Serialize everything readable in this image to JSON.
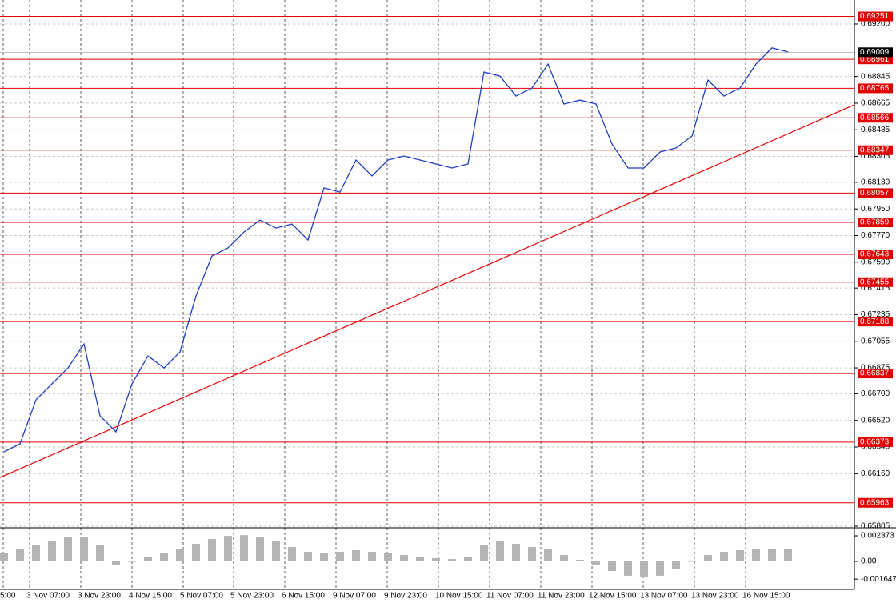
{
  "chart_data": [
    {
      "type": "line",
      "color": "#1f3fbf",
      "x": [
        0,
        1,
        2,
        3,
        4,
        5,
        6,
        7,
        8,
        9,
        10,
        11,
        12,
        13,
        14,
        15,
        16,
        17,
        18,
        19,
        20,
        21,
        22,
        23,
        24,
        25,
        26,
        27,
        28,
        29,
        30,
        31,
        32,
        33,
        34,
        35,
        36,
        37,
        38,
        39,
        40,
        41,
        42,
        43,
        44,
        45,
        46,
        47,
        48,
        49
      ],
      "values": [
        0.66307,
        0.66362,
        0.66659,
        0.66767,
        0.66875,
        0.67037,
        0.66551,
        0.66443,
        0.66767,
        0.66956,
        0.66875,
        0.66983,
        0.67362,
        0.67632,
        0.67686,
        0.67794,
        0.67875,
        0.67821,
        0.67848,
        0.6774,
        0.68092,
        0.68064,
        0.68281,
        0.68173,
        0.68281,
        0.68308,
        0.68281,
        0.68254,
        0.68227,
        0.68254,
        0.68875,
        0.68848,
        0.68713,
        0.68767,
        0.68929,
        0.68659,
        0.68686,
        0.68659,
        0.68389,
        0.68227,
        0.68227,
        0.68335,
        0.68362,
        0.68443,
        0.68821,
        0.68713,
        0.68767,
        0.68929,
        0.69038,
        0.69011
      ],
      "xlim": [
        -0.25,
        53.15
      ],
      "xticks": [
        {
          "value": -0.05,
          "label": "5:00"
        },
        {
          "value": 1.6,
          "label": "3 Nov 07:00"
        },
        {
          "value": 4.8,
          "label": "3 Nov 23:00"
        },
        {
          "value": 8,
          "label": "4 Nov 15:00"
        },
        {
          "value": 11.2,
          "label": "5 Nov 07:00"
        },
        {
          "value": 14.35,
          "label": "5 Nov 23:00"
        },
        {
          "value": 17.55,
          "label": "6 Nov 15:00"
        },
        {
          "value": 20.75,
          "label": "9 Nov 07:00"
        },
        {
          "value": 23.95,
          "label": "9 Nov 23:00"
        },
        {
          "value": 27.15,
          "label": "10 Nov 15:00"
        },
        {
          "value": 30.35,
          "label": "11 Nov 07:00"
        },
        {
          "value": 33.55,
          "label": "11 Nov 23:00"
        },
        {
          "value": 36.75,
          "label": "12 Nov 15:00"
        },
        {
          "value": 39.95,
          "label": "13 Nov 07:00"
        },
        {
          "value": 43.15,
          "label": "13 Nov 23:00"
        },
        {
          "value": 46.35,
          "label": "16 Nov 15:00"
        }
      ],
      "ylim": [
        0.65805,
        0.69362
      ],
      "yticks": [
        {
          "value": 0.692,
          "label": "0.69200"
        },
        {
          "value": 0.68845,
          "label": "0.68845"
        },
        {
          "value": 0.68665,
          "label": "0.68665"
        },
        {
          "value": 0.68485,
          "label": "0.68485"
        },
        {
          "value": 0.68305,
          "label": "0.68305"
        },
        {
          "value": 0.6813,
          "label": "0.68130"
        },
        {
          "value": 0.6795,
          "label": "0.67950"
        },
        {
          "value": 0.6777,
          "label": "0.67770"
        },
        {
          "value": 0.6759,
          "label": "0.67590"
        },
        {
          "value": 0.67415,
          "label": "0.67415"
        },
        {
          "value": 0.67235,
          "label": "0.67235"
        },
        {
          "value": 0.67055,
          "label": "0.67055"
        },
        {
          "value": 0.66875,
          "label": "0.66875"
        },
        {
          "value": 0.667,
          "label": "0.66700"
        },
        {
          "value": 0.6652,
          "label": "0.66520"
        },
        {
          "value": 0.6634,
          "label": "0.66340"
        },
        {
          "value": 0.6616,
          "label": "0.66160"
        },
        {
          "value": 0.65805,
          "label": "0.65805"
        }
      ],
      "levels": [
        {
          "value": 0.69251,
          "label": "0.69251"
        },
        {
          "value": 0.68961,
          "label": "0.68961"
        },
        {
          "value": 0.68765,
          "label": "0.68765"
        },
        {
          "value": 0.68566,
          "label": "0.68566"
        },
        {
          "value": 0.68347,
          "label": "0.68347"
        },
        {
          "value": 0.68057,
          "label": "0.68057"
        },
        {
          "value": 0.67859,
          "label": "0.67859"
        },
        {
          "value": 0.67643,
          "label": "0.67643"
        },
        {
          "value": 0.67455,
          "label": "0.67455"
        },
        {
          "value": 0.67188,
          "label": "0.67188"
        },
        {
          "value": 0.66837,
          "label": "0.66837"
        },
        {
          "value": 0.66373,
          "label": "0.66373"
        },
        {
          "value": 0.65963,
          "label": "0.65963"
        }
      ],
      "level_color": "#e00000",
      "current_price": {
        "value": 0.69009,
        "label": "0.69009"
      },
      "trendline": [
        0.66134,
        0.68654
      ],
      "grid": true
    },
    {
      "type": "bar",
      "color": "#b4b4b4",
      "values": [
        0.00074,
        0.00111,
        0.00148,
        0.00185,
        0.00222,
        0.00222,
        0.00148,
        -0.00037,
        0,
        0.00037,
        0.00074,
        0.00111,
        0.00163,
        0.00207,
        0.00237,
        0.00244,
        0.00222,
        0.00185,
        0.00133,
        0.00089,
        0.00074,
        0.00089,
        0.00104,
        0.00089,
        0.00074,
        0.00059,
        0.00044,
        0.0003,
        0.00022,
        0.00037,
        0.00148,
        0.00185,
        0.00163,
        0.00133,
        0.00111,
        0.00059,
        0.00015,
        -0.00037,
        -0.00089,
        -0.00133,
        -0.00148,
        -0.00133,
        -0.00074,
        0,
        0.00059,
        0.00089,
        0.00104,
        0.00111,
        0.00118,
        0.00118
      ],
      "ylim": [
        -0.00245,
        0.00297
      ],
      "yticks": [
        0.002373,
        {
          "value": 0,
          "label": "0.00"
        },
        -0.001647
      ]
    }
  ]
}
